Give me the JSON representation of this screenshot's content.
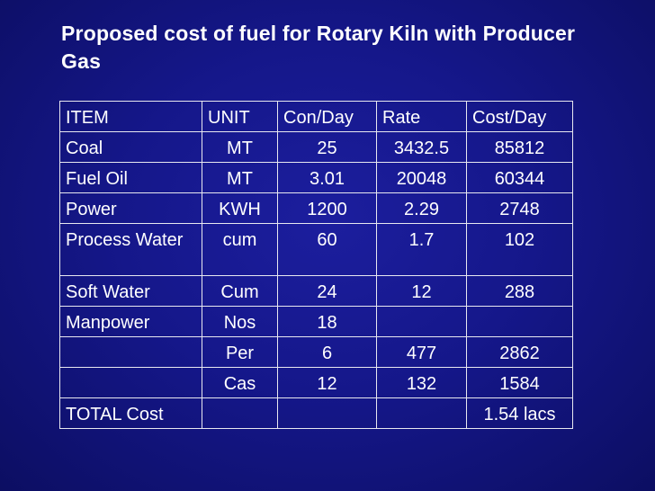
{
  "slide": {
    "title": "Proposed cost of fuel for Rotary Kiln with Producer Gas"
  },
  "table": {
    "headers": [
      "ITEM",
      "UNIT",
      "Con/Day",
      "Rate",
      "Cost/Day"
    ],
    "rows": [
      [
        "Coal",
        "MT",
        "25",
        "3432.5",
        "85812"
      ],
      [
        "Fuel Oil",
        "MT",
        "3.01",
        "20048",
        "60344"
      ],
      [
        "Power",
        "KWH",
        "1200",
        "2.29",
        "2748"
      ],
      [
        "Process Water",
        "cum",
        "60",
        "1.7",
        "102"
      ],
      [
        "Soft Water",
        "Cum",
        "24",
        "12",
        "288"
      ],
      [
        "Manpower",
        "Nos",
        "18",
        "",
        ""
      ],
      [
        "",
        "Per",
        "6",
        "477",
        "2862"
      ],
      [
        "",
        "Cas",
        "12",
        "132",
        "1584"
      ],
      [
        "TOTAL Cost",
        "",
        "",
        "",
        "1.54 lacs"
      ]
    ]
  },
  "colors": {
    "background": "#15178a",
    "text": "#ffffff",
    "border": "#e8e8f0"
  }
}
